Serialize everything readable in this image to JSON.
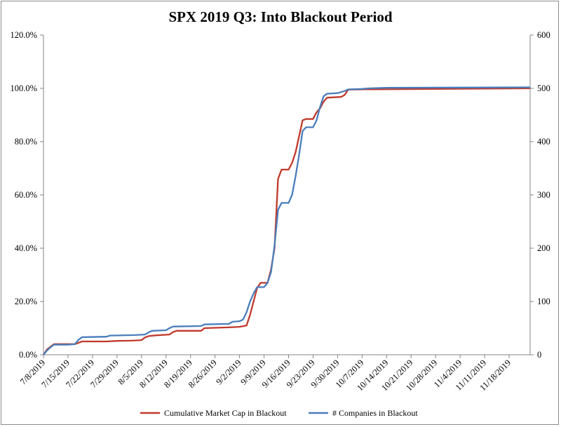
{
  "chart_data": {
    "type": "line",
    "title": "SPX 2019 Q3: Into Blackout Period",
    "x_tick_labels": [
      "7/8/2019",
      "7/15/2019",
      "7/22/2019",
      "7/29/2019",
      "8/5/2019",
      "8/12/2019",
      "8/19/2019",
      "8/26/2019",
      "9/2/2019",
      "9/9/2019",
      "9/16/2019",
      "9/23/2019",
      "9/30/2019",
      "10/7/2019",
      "10/14/2019",
      "10/21/2019",
      "10/28/2019",
      "11/4/2019",
      "11/11/2019",
      "11/18/2019"
    ],
    "y_left": {
      "ticks": [
        "0.0%",
        "20.0%",
        "40.0%",
        "60.0%",
        "80.0%",
        "100.0%",
        "120.0%"
      ],
      "range": [
        0,
        120
      ],
      "unit": "%"
    },
    "y_right": {
      "ticks": [
        "0",
        "100",
        "200",
        "300",
        "400",
        "500",
        "600"
      ],
      "range": [
        0,
        600
      ]
    },
    "legend_position": "bottom",
    "grid": false,
    "series": [
      {
        "name": "Cumulative Market Cap in Blackout",
        "axis": "left",
        "color": "#c0392b",
        "points": [
          [
            "7/8/2019",
            0
          ],
          [
            "7/9/2019",
            2
          ],
          [
            "7/10/2019",
            3
          ],
          [
            "7/11/2019",
            4
          ],
          [
            "7/15/2019",
            4
          ],
          [
            "7/17/2019",
            4
          ],
          [
            "7/18/2019",
            4.5
          ],
          [
            "7/19/2019",
            5
          ],
          [
            "7/26/2019",
            5
          ],
          [
            "7/29/2019",
            5.2
          ],
          [
            "8/2/2019",
            5.3
          ],
          [
            "8/5/2019",
            5.5
          ],
          [
            "8/6/2019",
            6.5
          ],
          [
            "8/7/2019",
            7
          ],
          [
            "8/9/2019",
            7.3
          ],
          [
            "8/13/2019",
            7.6
          ],
          [
            "8/14/2019",
            8.5
          ],
          [
            "8/15/2019",
            9
          ],
          [
            "8/22/2019",
            9
          ],
          [
            "8/23/2019",
            10
          ],
          [
            "8/30/2019",
            10.3
          ],
          [
            "9/2/2019",
            10.5
          ],
          [
            "9/4/2019",
            11
          ],
          [
            "9/5/2019",
            15
          ],
          [
            "9/6/2019",
            20
          ],
          [
            "9/7/2019",
            25
          ],
          [
            "9/8/2019",
            27
          ],
          [
            "9/10/2019",
            27
          ],
          [
            "9/11/2019",
            32
          ],
          [
            "9/12/2019",
            40
          ],
          [
            "9/13/2019",
            66
          ],
          [
            "9/14/2019",
            69.5
          ],
          [
            "9/16/2019",
            69.5
          ],
          [
            "9/17/2019",
            72
          ],
          [
            "9/18/2019",
            76
          ],
          [
            "9/19/2019",
            82
          ],
          [
            "9/20/2019",
            88
          ],
          [
            "9/21/2019",
            88.5
          ],
          [
            "9/23/2019",
            88.5
          ],
          [
            "9/24/2019",
            91
          ],
          [
            "9/25/2019",
            92.5
          ],
          [
            "9/26/2019",
            95
          ],
          [
            "9/27/2019",
            96.5
          ],
          [
            "10/1/2019",
            96.8
          ],
          [
            "10/2/2019",
            97.5
          ],
          [
            "10/3/2019",
            99.5
          ],
          [
            "10/7/2019",
            99.6
          ],
          [
            "11/24/2019",
            100
          ]
        ]
      },
      {
        "name": "# Companies in Blackout",
        "axis": "right",
        "color": "#4a7ebb",
        "points": [
          [
            "7/8/2019",
            0
          ],
          [
            "7/9/2019",
            8
          ],
          [
            "7/10/2019",
            14
          ],
          [
            "7/11/2019",
            19
          ],
          [
            "7/15/2019",
            19
          ],
          [
            "7/17/2019",
            20
          ],
          [
            "7/18/2019",
            28
          ],
          [
            "7/19/2019",
            33
          ],
          [
            "7/26/2019",
            34
          ],
          [
            "7/27/2019",
            36
          ],
          [
            "8/3/2019",
            37
          ],
          [
            "8/6/2019",
            38
          ],
          [
            "8/7/2019",
            42
          ],
          [
            "8/8/2019",
            45
          ],
          [
            "8/12/2019",
            46
          ],
          [
            "8/13/2019",
            50
          ],
          [
            "8/14/2019",
            53
          ],
          [
            "8/22/2019",
            54
          ],
          [
            "8/23/2019",
            57
          ],
          [
            "8/30/2019",
            58
          ],
          [
            "8/31/2019",
            62
          ],
          [
            "9/2/2019",
            63
          ],
          [
            "9/3/2019",
            66
          ],
          [
            "9/4/2019",
            80
          ],
          [
            "9/5/2019",
            100
          ],
          [
            "9/6/2019",
            115
          ],
          [
            "9/7/2019",
            127
          ],
          [
            "9/9/2019",
            127
          ],
          [
            "9/10/2019",
            135
          ],
          [
            "9/11/2019",
            155
          ],
          [
            "9/12/2019",
            205
          ],
          [
            "9/13/2019",
            272
          ],
          [
            "9/14/2019",
            285
          ],
          [
            "9/16/2019",
            285
          ],
          [
            "9/17/2019",
            300
          ],
          [
            "9/18/2019",
            335
          ],
          [
            "9/19/2019",
            375
          ],
          [
            "9/20/2019",
            420
          ],
          [
            "9/21/2019",
            427
          ],
          [
            "9/23/2019",
            427
          ],
          [
            "9/24/2019",
            440
          ],
          [
            "9/25/2019",
            465
          ],
          [
            "9/26/2019",
            485
          ],
          [
            "9/27/2019",
            490
          ],
          [
            "9/30/2019",
            491
          ],
          [
            "10/2/2019",
            495
          ],
          [
            "10/3/2019",
            498
          ],
          [
            "10/7/2019",
            499
          ],
          [
            "10/9/2019",
            500
          ],
          [
            "10/14/2019",
            501
          ],
          [
            "11/24/2019",
            502
          ]
        ]
      }
    ]
  }
}
